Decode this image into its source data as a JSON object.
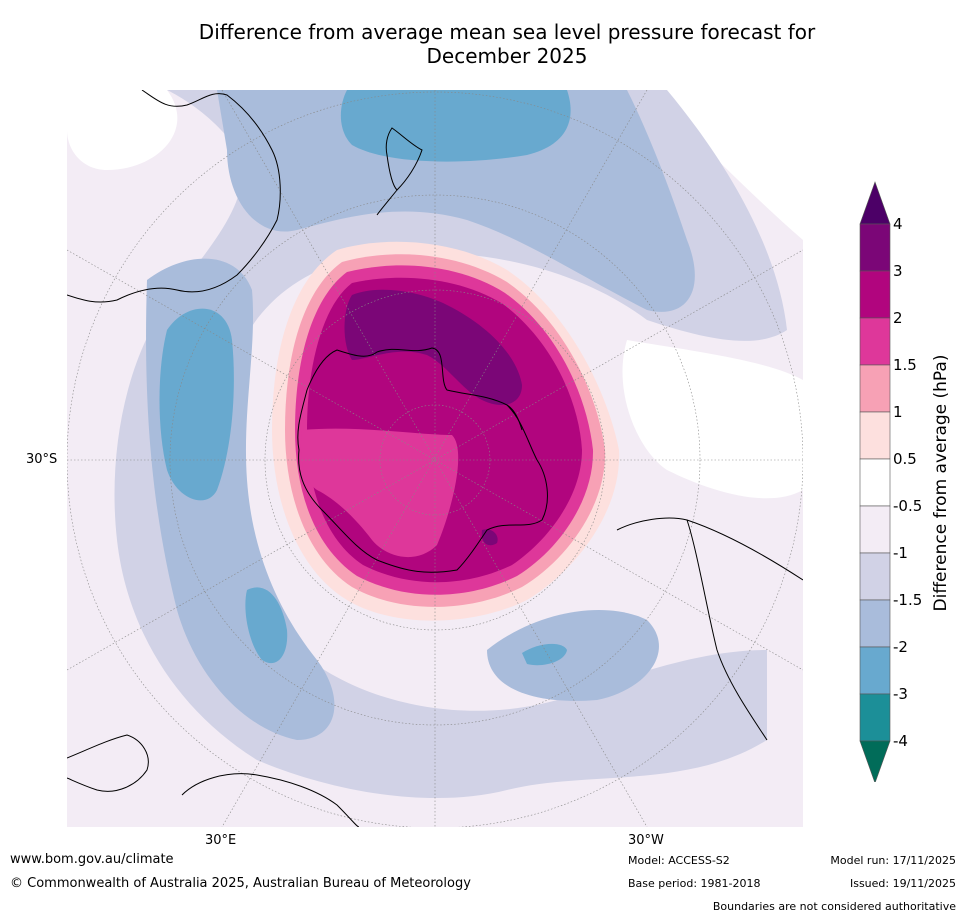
{
  "title": {
    "line1": "Difference from average mean sea level pressure forecast for",
    "line2": "December 2025"
  },
  "map": {
    "projection": "south polar stereographic",
    "labels": {
      "lat": "30°S",
      "lon_east": "30°E",
      "lon_west": "30°W"
    }
  },
  "colorbar": {
    "title": "Difference from average (hPa)",
    "ticks": [
      "4",
      "3",
      "2",
      "1.5",
      "1",
      "0.5",
      "-0.5",
      "-1",
      "-1.5",
      "-2",
      "-3",
      "-4"
    ],
    "bins": [
      {
        "range": "3 to 4",
        "color": "#7b0677"
      },
      {
        "range": "2 to 3",
        "color": "#b1057e"
      },
      {
        "range": "1.5 to 2",
        "color": "#de379a"
      },
      {
        "range": "1 to 1.5",
        "color": "#f7a1b5"
      },
      {
        "range": "0.5 to 1",
        "color": "#fde0de"
      },
      {
        "range": "-0.5 to 0.5",
        "color": "#ffffff"
      },
      {
        "range": "-1 to -0.5",
        "color": "#f3ecf5"
      },
      {
        "range": "-1.5 to -1",
        "color": "#d1d2e6"
      },
      {
        "range": "-2 to -1.5",
        "color": "#a9bcdb"
      },
      {
        "range": "-3 to -2",
        "color": "#68a9cf"
      },
      {
        "range": "-4 to -3",
        "color": "#1c8f98"
      }
    ],
    "over_color": "#4c0067",
    "under_color": "#016c59"
  },
  "footer": {
    "url": "www.bom.gov.au/climate",
    "copyright": "© Commonwealth of Australia 2025, Australian Bureau of Meteorology",
    "model": "Model: ACCESS-S2",
    "base_period": "Base period: 1981-2018",
    "model_run": "Model run: 17/11/2025",
    "issued": "Issued: 19/11/2025",
    "disclaimer": "Boundaries are not considered authoritative"
  }
}
